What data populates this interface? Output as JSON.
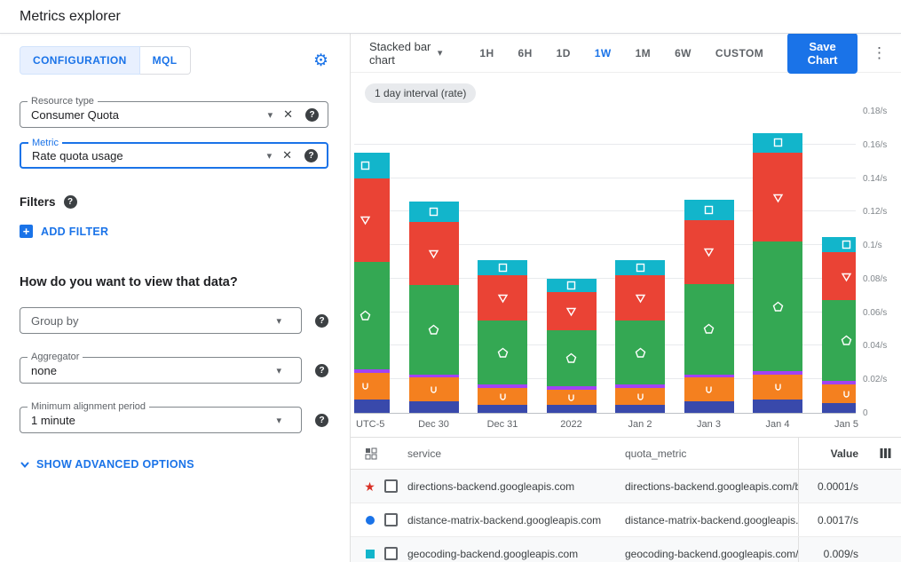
{
  "icons": {
    "gear": "⚙",
    "dropdown_arrow": "▾",
    "clear": "✕",
    "help": "?",
    "kebab": "⋮",
    "star": "★",
    "add": "+"
  },
  "header": {
    "title": "Metrics explorer"
  },
  "left_panel": {
    "tabs": [
      {
        "label": "CONFIGURATION",
        "active": true
      },
      {
        "label": "MQL",
        "active": false
      }
    ],
    "fields": {
      "resource_type": {
        "label": "Resource type",
        "value": "Consumer Quota"
      },
      "metric": {
        "label": "Metric",
        "value": "Rate quota usage"
      },
      "group_by": {
        "placeholder": "Group by"
      },
      "aggregator": {
        "label": "Aggregator",
        "value": "none"
      },
      "min_alignment": {
        "label": "Minimum alignment period",
        "value": "1 minute"
      }
    },
    "filters_label": "Filters",
    "add_filter_label": "ADD FILTER",
    "view_question": "How do you want to view that data?",
    "show_advanced_label": "SHOW ADVANCED OPTIONS"
  },
  "toolbar": {
    "chart_type_label": "Stacked bar chart",
    "time_ranges": [
      "1H",
      "6H",
      "1D",
      "1W",
      "1M",
      "6W",
      "CUSTOM"
    ],
    "active_range": "1W",
    "save_button_label": "Save Chart"
  },
  "interval_chip": "1 day interval (rate)",
  "chart_data": {
    "type": "bar",
    "stacked": true,
    "unit": "/s",
    "ylim": [
      0,
      0.18
    ],
    "grid": true,
    "y_axis_position": "right",
    "y_ticks": [
      "0.18/s",
      "0.16/s",
      "0.14/s",
      "0.12/s",
      "0.1/s",
      "0.08/s",
      "0.06/s",
      "0.04/s",
      "0.02/s",
      "0"
    ],
    "x_labels": [
      "UTC-5",
      "Dec 30",
      "Dec 31",
      "2022",
      "Jan 2",
      "Jan 3",
      "Jan 4",
      "Jan 5"
    ],
    "series": [
      {
        "name": "dark-blue",
        "color": "#3949ab",
        "marker": "none",
        "values": [
          0.008,
          0.007,
          0.005,
          0.005,
          0.005,
          0.007,
          0.008,
          0.006
        ]
      },
      {
        "name": "orange",
        "color": "#f4801f",
        "marker": "u-shape",
        "values": [
          0.016,
          0.014,
          0.01,
          0.009,
          0.01,
          0.014,
          0.015,
          0.011
        ]
      },
      {
        "name": "purple",
        "color": "#a142f4",
        "marker": "none",
        "values": [
          0.002,
          0.002,
          0.002,
          0.002,
          0.002,
          0.002,
          0.002,
          0.002
        ]
      },
      {
        "name": "green",
        "color": "#34a853",
        "marker": "pentagon",
        "values": [
          0.064,
          0.053,
          0.038,
          0.033,
          0.038,
          0.054,
          0.077,
          0.048
        ]
      },
      {
        "name": "red",
        "color": "#ea4335",
        "marker": "triangle-down",
        "values": [
          0.05,
          0.038,
          0.027,
          0.023,
          0.027,
          0.038,
          0.053,
          0.029
        ]
      },
      {
        "name": "teal",
        "color": "#12b5cb",
        "marker": "square",
        "values": [
          0.015,
          0.012,
          0.009,
          0.008,
          0.009,
          0.012,
          0.012,
          0.009
        ]
      }
    ]
  },
  "table": {
    "columns": {
      "service": "service",
      "quota_metric": "quota_metric",
      "value": "Value"
    },
    "rows": [
      {
        "marker": "star",
        "marker_color": "#d93025",
        "service": "directions-backend.googleapis.com",
        "quota_metric": "directions-backend.googleapis.com/billabl",
        "value": "0.0001/s"
      },
      {
        "marker": "circle",
        "marker_color": "#1a73e8",
        "service": "distance-matrix-backend.googleapis.com",
        "quota_metric": "distance-matrix-backend.googleapis.com/l",
        "value": "0.0017/s"
      },
      {
        "marker": "square",
        "marker_color": "#12b5cb",
        "service": "geocoding-backend.googleapis.com",
        "quota_metric": "geocoding-backend.googleapis.com/billab",
        "value": "0.009/s"
      }
    ]
  },
  "colors": {
    "accent_blue": "#1a73e8"
  }
}
